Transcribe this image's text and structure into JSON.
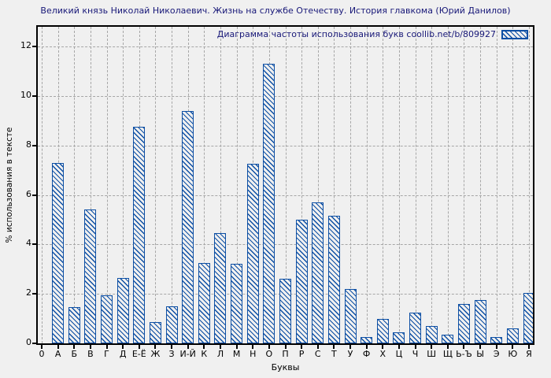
{
  "figure": {
    "background": "#f0f0f0"
  },
  "colors": {
    "bar_blue": "#0d4fa4",
    "grid_gray": "#a6a6a6",
    "axis_black": "#000000",
    "title_navy": "#181878",
    "figure_bg": "#f0f0f0"
  },
  "chart_data": {
    "type": "bar",
    "title": "Великий князь Николай Николаевич. Жизнь на службе Отечеству. История главкома (Юрий Данилов)",
    "legend": "Диаграмма частоты использования букв coollib.net/b/809927",
    "legend_position": "top-right",
    "xlabel": "Буквы",
    "ylabel": "% использования в тексте",
    "origin_tick_label": "0",
    "categories": [
      "А",
      "Б",
      "В",
      "Г",
      "Д",
      "Е-Ё",
      "Ж",
      "З",
      "И-Й",
      "К",
      "Л",
      "М",
      "Н",
      "О",
      "П",
      "Р",
      "С",
      "Т",
      "У",
      "Ф",
      "Х",
      "Ц",
      "Ч",
      "Ш",
      "Щ",
      "Ь-Ъ",
      "Ы",
      "Э",
      "Ю",
      "Я"
    ],
    "values": [
      7.3,
      1.45,
      5.4,
      1.95,
      2.65,
      8.75,
      0.85,
      1.5,
      9.4,
      3.25,
      4.45,
      3.2,
      7.25,
      11.3,
      2.6,
      5.0,
      5.7,
      5.15,
      2.2,
      0.25,
      1.0,
      0.45,
      1.25,
      0.7,
      0.35,
      1.6,
      1.75,
      0.25,
      0.6,
      2.05
    ],
    "y_ticks": [
      0,
      2,
      4,
      6,
      8,
      10,
      12
    ],
    "ylim": [
      0,
      12.8
    ],
    "grid": true,
    "grid_style": "dashed",
    "bar_hatch": "\\\\"
  }
}
